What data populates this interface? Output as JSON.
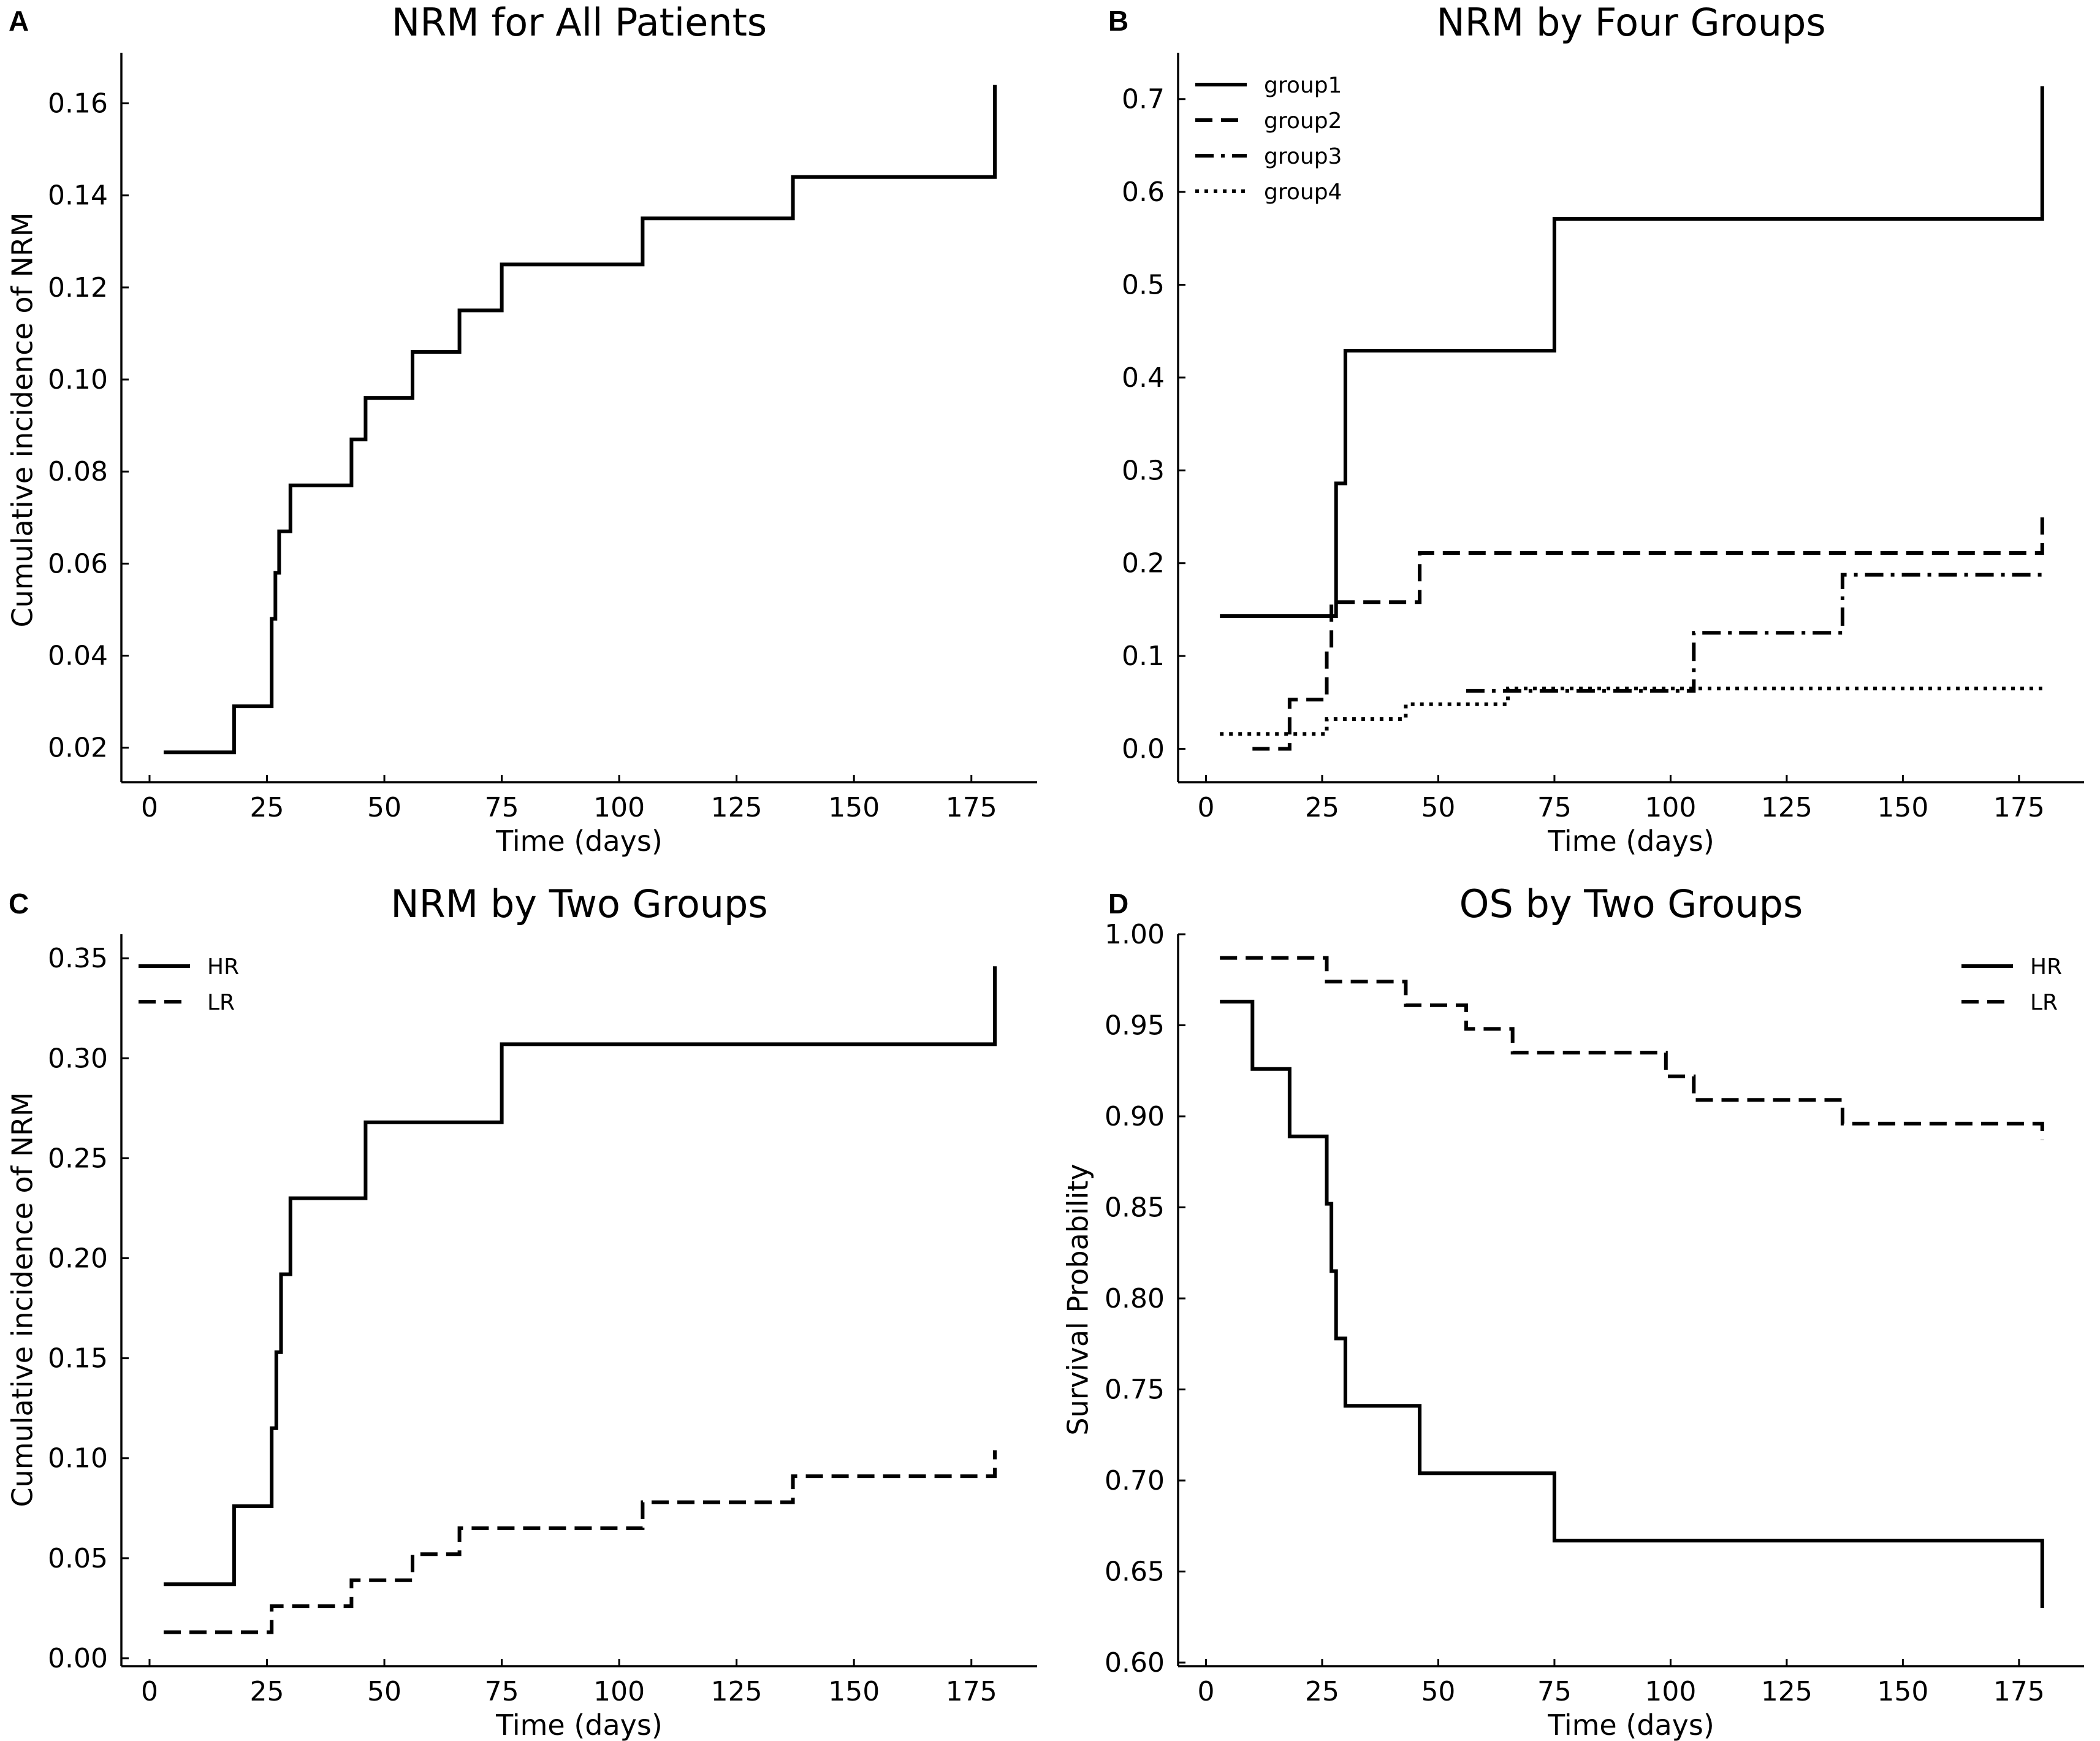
{
  "figure": {
    "panel_letters": [
      "A",
      "B",
      "C",
      "D"
    ]
  },
  "chart_data": [
    {
      "panel": "A",
      "type": "line",
      "step": true,
      "title": "NRM for All Patients",
      "xlabel": "Time (days)",
      "ylabel": "Cumulative incidence of NRM",
      "xlim": [
        -6,
        189
      ],
      "ylim": [
        0.0125,
        0.171
      ],
      "xticks": [
        0,
        25,
        50,
        75,
        100,
        125,
        150,
        175
      ],
      "xtick_labels": [
        "0",
        "25",
        "50",
        "75",
        "100",
        "125",
        "150",
        "175"
      ],
      "yticks": [
        0.02,
        0.04,
        0.06,
        0.08,
        0.1,
        0.12,
        0.14,
        0.16
      ],
      "ytick_labels": [
        "0.02",
        "0.04",
        "0.06",
        "0.08",
        "0.10",
        "0.12",
        "0.14",
        "0.16"
      ],
      "legend": null,
      "series": [
        {
          "name": "All patients",
          "style": "solid",
          "x": [
            3,
            18,
            26,
            26.8,
            27.6,
            30,
            43,
            46,
            56,
            66,
            75,
            105,
            137,
            180,
            180
          ],
          "y": [
            0.019,
            0.029,
            0.048,
            0.058,
            0.067,
            0.077,
            0.087,
            0.096,
            0.106,
            0.115,
            0.125,
            0.135,
            0.144,
            0.144,
            0.164
          ]
        }
      ]
    },
    {
      "panel": "B",
      "type": "line",
      "step": true,
      "title": "NRM by Four Groups",
      "xlabel": "Time (days)",
      "ylabel": "",
      "xlim": [
        -6,
        189
      ],
      "ylim": [
        -0.036,
        0.75
      ],
      "xticks": [
        0,
        25,
        50,
        75,
        100,
        125,
        150,
        175
      ],
      "xtick_labels": [
        "0",
        "25",
        "50",
        "75",
        "100",
        "125",
        "150",
        "175"
      ],
      "yticks": [
        0.0,
        0.1,
        0.2,
        0.3,
        0.4,
        0.5,
        0.6,
        0.7
      ],
      "ytick_labels": [
        "0.0",
        "0.1",
        "0.2",
        "0.3",
        "0.4",
        "0.5",
        "0.6",
        "0.7"
      ],
      "legend": "top-left",
      "series": [
        {
          "name": "group1",
          "style": "solid",
          "x": [
            3,
            27,
            28,
            30,
            75,
            180,
            180
          ],
          "y": [
            0.143,
            0.143,
            0.286,
            0.429,
            0.571,
            0.571,
            0.714
          ]
        },
        {
          "name": "group2",
          "style": "dashed",
          "x": [
            10,
            18,
            26,
            27,
            28,
            46,
            180,
            180
          ],
          "y": [
            0.0,
            0.053,
            0.105,
            0.158,
            0.158,
            0.211,
            0.211,
            0.25
          ]
        },
        {
          "name": "group3",
          "style": "dashdot",
          "x": [
            56,
            105,
            137,
            180
          ],
          "y": [
            0.0625,
            0.125,
            0.1875,
            0.1875
          ]
        },
        {
          "name": "group4",
          "style": "dotted",
          "x": [
            3,
            18,
            26,
            43,
            65,
            180
          ],
          "y": [
            0.016,
            0.016,
            0.032,
            0.048,
            0.065,
            0.065
          ]
        }
      ]
    },
    {
      "panel": "C",
      "type": "line",
      "step": true,
      "title": "NRM by Two Groups",
      "xlabel": "Time (days)",
      "ylabel": "Cumulative incidence of NRM",
      "xlim": [
        -6,
        189
      ],
      "ylim": [
        -0.004,
        0.362
      ],
      "xticks": [
        0,
        25,
        50,
        75,
        100,
        125,
        150,
        175
      ],
      "xtick_labels": [
        "0",
        "25",
        "50",
        "75",
        "100",
        "125",
        "150",
        "175"
      ],
      "yticks": [
        0.0,
        0.05,
        0.1,
        0.15,
        0.2,
        0.25,
        0.3,
        0.35
      ],
      "ytick_labels": [
        "0.00",
        "0.05",
        "0.10",
        "0.15",
        "0.20",
        "0.25",
        "0.30",
        "0.35"
      ],
      "legend": "top-left",
      "series": [
        {
          "name": "HR",
          "style": "solid",
          "x": [
            3,
            18,
            26,
            27,
            28,
            30,
            46,
            75,
            180,
            180
          ],
          "y": [
            0.037,
            0.076,
            0.115,
            0.153,
            0.192,
            0.23,
            0.268,
            0.307,
            0.307,
            0.346
          ]
        },
        {
          "name": "LR",
          "style": "dashed",
          "x": [
            3,
            26,
            43,
            56,
            66,
            105,
            137,
            180,
            180
          ],
          "y": [
            0.013,
            0.026,
            0.039,
            0.052,
            0.065,
            0.078,
            0.091,
            0.091,
            0.104
          ]
        }
      ]
    },
    {
      "panel": "D",
      "type": "line",
      "step": true,
      "title": "OS by Two Groups",
      "xlabel": "Time (days)",
      "ylabel": "Survival Probability",
      "xlim": [
        -6,
        189
      ],
      "ylim": [
        0.598,
        1.0
      ],
      "xticks": [
        0,
        25,
        50,
        75,
        100,
        125,
        150,
        175
      ],
      "xtick_labels": [
        "0",
        "25",
        "50",
        "75",
        "100",
        "125",
        "150",
        "175"
      ],
      "yticks": [
        0.6,
        0.65,
        0.7,
        0.75,
        0.8,
        0.85,
        0.9,
        0.95,
        1.0
      ],
      "ytick_labels": [
        "0.60",
        "0.65",
        "0.70",
        "0.75",
        "0.80",
        "0.85",
        "0.90",
        "0.95",
        "1.00"
      ],
      "legend": "top-right",
      "series": [
        {
          "name": "HR",
          "style": "solid",
          "x": [
            3,
            10,
            18,
            26,
            27,
            28,
            30,
            46,
            75,
            180,
            180
          ],
          "y": [
            0.963,
            0.926,
            0.889,
            0.852,
            0.815,
            0.778,
            0.741,
            0.704,
            0.667,
            0.667,
            0.63
          ]
        },
        {
          "name": "LR",
          "style": "dashed",
          "x": [
            3,
            26,
            43,
            56,
            66,
            99,
            105,
            137,
            180,
            180
          ],
          "y": [
            0.987,
            0.974,
            0.961,
            0.948,
            0.935,
            0.922,
            0.909,
            0.896,
            0.896,
            0.887
          ]
        }
      ]
    }
  ]
}
